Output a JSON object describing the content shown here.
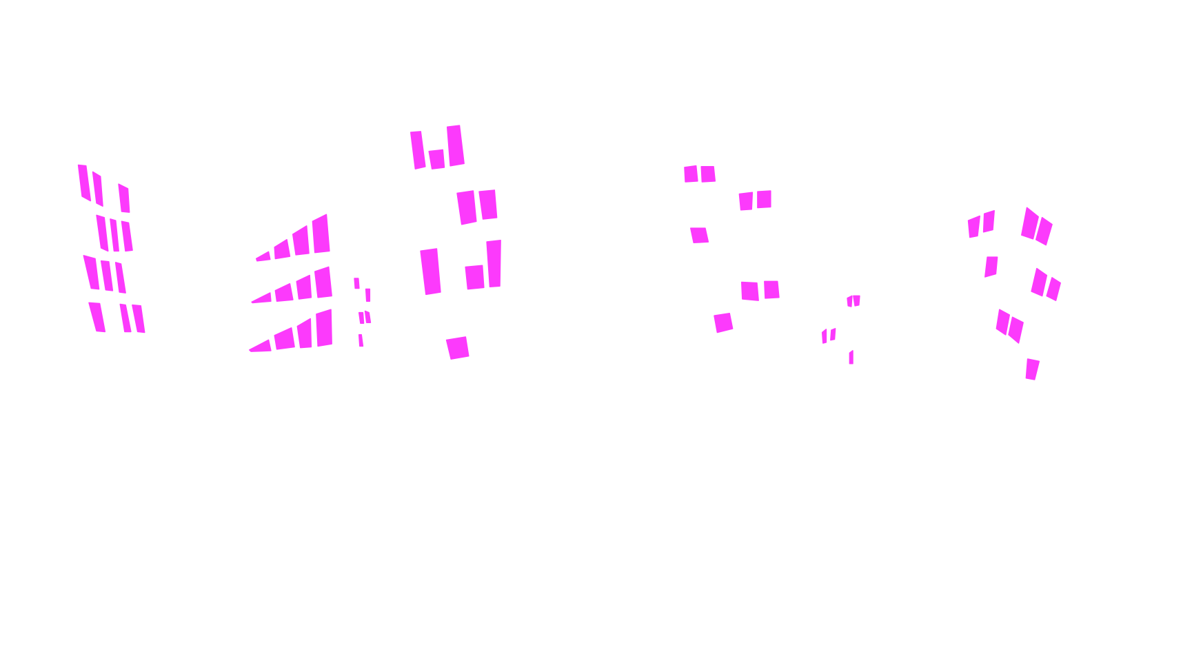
{
  "image": {
    "background_color": "#ffffff",
    "mask_color": "#fc3afc",
    "content": "segmentation-mask"
  }
}
